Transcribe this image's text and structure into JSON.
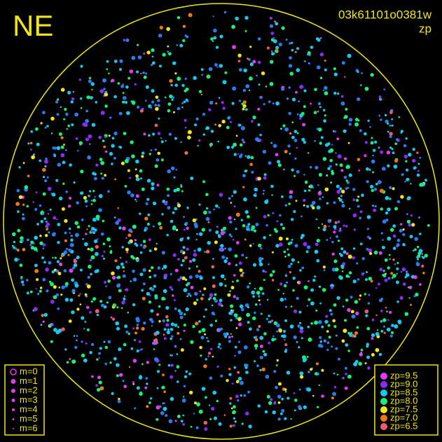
{
  "header": {
    "corner": "NE",
    "frame": "03k61101o0381w",
    "quantity": "zp"
  },
  "legend_mag": [
    "m=0",
    "m=1",
    "m=2",
    "m=3",
    "m=4",
    "m=5",
    "m=6"
  ],
  "legend_zp": [
    {
      "label": "zp=9.5",
      "color": "#e23cf0"
    },
    {
      "label": "zp=9.0",
      "color": "#8a2cf5"
    },
    {
      "label": "zp=8.5",
      "color": "#19c8f0"
    },
    {
      "label": "zp=8.0",
      "color": "#19f07a"
    },
    {
      "label": "zp=7.5",
      "color": "#f0e619"
    },
    {
      "label": "zp=7.0",
      "color": "#f07814"
    },
    {
      "label": "zp=6.5",
      "color": "#f05a6e"
    }
  ]
}
